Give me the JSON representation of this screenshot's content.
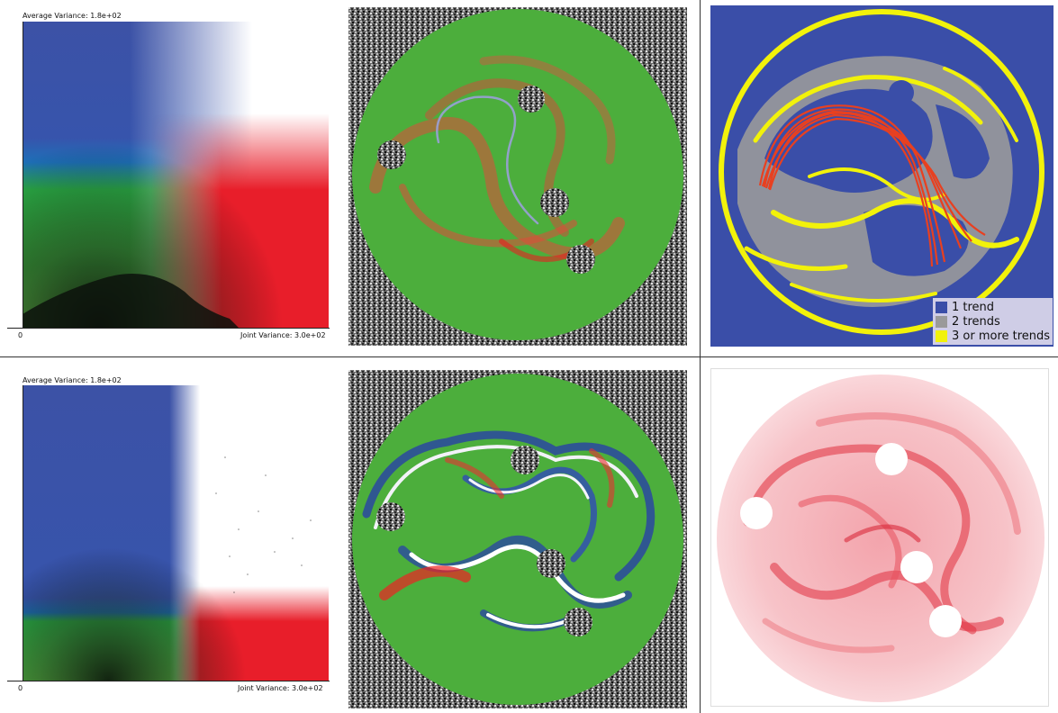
{
  "panels": {
    "top_left": {
      "y_label": "Average Variance: 1.8e+02",
      "x_origin": "0",
      "x_label": "Joint Variance: 3.0e+02"
    },
    "bottom_left": {
      "y_label": "Average Variance: 1.8e+02",
      "x_origin": "0",
      "x_label": "Joint Variance: 3.0e+02"
    }
  },
  "legend": {
    "items": [
      {
        "label": "1 trend",
        "color": "#3b4fa8"
      },
      {
        "label": "2 trends",
        "color": "#9a9a9a"
      },
      {
        "label": "3 or more trends",
        "color": "#f2f20a"
      }
    ]
  },
  "colors": {
    "blue": "#3b4fa8",
    "green": "#2fb43a",
    "red": "#e8202a",
    "yellow": "#f2f20a",
    "gray": "#9a9a9a",
    "field_green": "#4cae3c",
    "pink": "#f08a96"
  }
}
